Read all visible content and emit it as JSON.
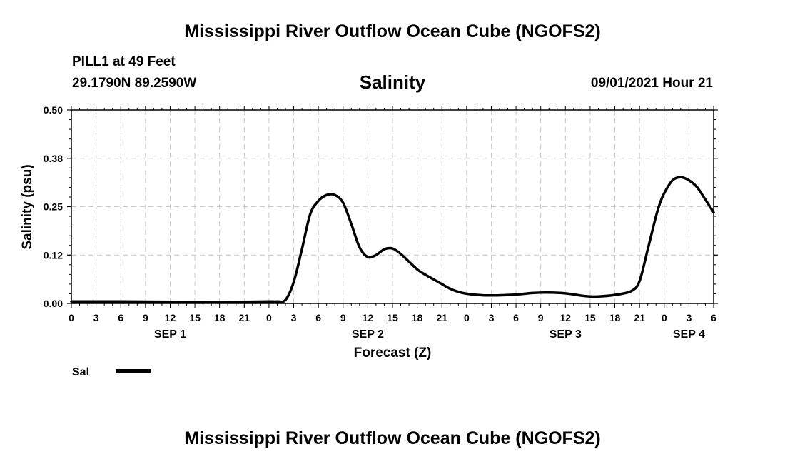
{
  "header": {
    "title_top": "Mississippi River Outflow Ocean Cube (NGOFS2)",
    "station": "PILL1 at 49 Feet",
    "coords": "29.1790N  89.2590W",
    "variable": "Salinity",
    "datetime": "09/01/2021 Hour 21"
  },
  "footer": {
    "title_bottom": "Mississippi River Outflow Ocean Cube (NGOFS2)"
  },
  "legend": {
    "label": "Sal"
  },
  "chart_data": {
    "type": "line",
    "title": "Salinity",
    "xlabel": "Forecast (Z)",
    "ylabel": "Salinity (psu)",
    "x_unit": "hours since 2021-09-01 00Z",
    "xlim": [
      0,
      78
    ],
    "ylim": [
      0,
      0.5
    ],
    "yticks": [
      "0.00",
      "0.12",
      "0.25",
      "0.38",
      "0.50"
    ],
    "ytick_values": [
      0,
      0.125,
      0.25,
      0.375,
      0.5
    ],
    "xtick_labels": [
      "0",
      "3",
      "6",
      "9",
      "12",
      "15",
      "18",
      "21",
      "0",
      "3",
      "6",
      "9",
      "12",
      "15",
      "18",
      "21",
      "0",
      "3",
      "6",
      "9",
      "12",
      "15",
      "18",
      "21",
      "0",
      "3",
      "6"
    ],
    "day_labels": [
      {
        "label": "SEP 1",
        "hour": 12
      },
      {
        "label": "SEP 2",
        "hour": 36
      },
      {
        "label": "SEP 3",
        "hour": 60
      },
      {
        "label": "SEP 4",
        "hour": 75
      }
    ],
    "grid": true,
    "legend_position": "bottom-left",
    "series": [
      {
        "name": "Sal",
        "x": [
          0,
          6,
          12,
          18,
          21,
          24,
          25,
          26,
          27,
          28,
          29,
          30,
          31,
          32,
          33,
          34,
          35,
          36,
          37,
          38,
          39,
          40,
          41,
          42,
          43,
          44,
          45,
          46,
          47,
          48,
          50,
          52,
          54,
          56,
          58,
          60,
          62,
          63,
          64,
          66,
          68,
          69,
          70,
          71,
          71.5,
          72,
          73,
          74,
          75,
          76,
          77,
          78
        ],
        "y": [
          0.005,
          0.005,
          0.004,
          0.004,
          0.004,
          0.005,
          0.005,
          0.009,
          0.055,
          0.14,
          0.23,
          0.265,
          0.28,
          0.28,
          0.26,
          0.205,
          0.145,
          0.12,
          0.125,
          0.14,
          0.142,
          0.128,
          0.108,
          0.088,
          0.074,
          0.062,
          0.05,
          0.038,
          0.03,
          0.025,
          0.021,
          0.021,
          0.023,
          0.027,
          0.028,
          0.026,
          0.02,
          0.018,
          0.018,
          0.022,
          0.032,
          0.058,
          0.14,
          0.225,
          0.26,
          0.285,
          0.318,
          0.326,
          0.318,
          0.3,
          0.268,
          0.235
        ]
      }
    ]
  }
}
